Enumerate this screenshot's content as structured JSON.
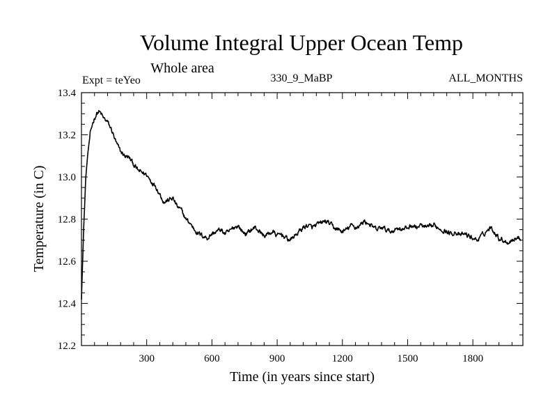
{
  "chart_data": {
    "type": "line",
    "title": "Volume Integral Upper Ocean Temp",
    "subtitle": "Whole area",
    "left_note": "Expt = teYeo",
    "center_note": "330_9_MaBP",
    "right_note": "ALL_MONTHS",
    "xlabel": "Time (in years since start)",
    "ylabel": "Temperature (in C)",
    "xlim": [
      0,
      2030
    ],
    "ylim": [
      12.2,
      13.4
    ],
    "x_ticks": [
      300,
      600,
      900,
      1200,
      1500,
      1800
    ],
    "y_ticks": [
      "12.2",
      "12.4",
      "12.6",
      "12.8",
      "13.0",
      "13.2",
      "13.4"
    ],
    "grid": false,
    "series": [
      {
        "name": "Volume Integral Upper Ocean Temp",
        "x": [
          0,
          10,
          20,
          30,
          40,
          50,
          60,
          70,
          80,
          90,
          100,
          120,
          140,
          160,
          180,
          200,
          220,
          240,
          260,
          280,
          300,
          320,
          340,
          360,
          380,
          400,
          420,
          440,
          460,
          480,
          500,
          520,
          540,
          560,
          580,
          600,
          620,
          640,
          660,
          680,
          700,
          720,
          740,
          760,
          780,
          800,
          820,
          840,
          860,
          880,
          900,
          920,
          940,
          960,
          980,
          1000,
          1020,
          1040,
          1060,
          1080,
          1100,
          1120,
          1140,
          1160,
          1180,
          1200,
          1220,
          1240,
          1260,
          1280,
          1300,
          1320,
          1340,
          1360,
          1380,
          1400,
          1420,
          1440,
          1460,
          1480,
          1500,
          1520,
          1540,
          1560,
          1580,
          1600,
          1620,
          1640,
          1660,
          1680,
          1700,
          1720,
          1740,
          1760,
          1780,
          1800,
          1820,
          1840,
          1860,
          1880,
          1900,
          1920,
          1940,
          1960,
          1980,
          2000,
          2020
        ],
        "values": [
          12.42,
          12.75,
          13.0,
          13.12,
          13.2,
          13.25,
          13.28,
          13.3,
          13.31,
          13.3,
          13.28,
          13.26,
          13.22,
          13.16,
          13.12,
          13.1,
          13.09,
          13.06,
          13.03,
          13.02,
          13.01,
          12.98,
          12.96,
          12.92,
          12.88,
          12.89,
          12.9,
          12.86,
          12.84,
          12.8,
          12.78,
          12.75,
          12.73,
          12.72,
          12.71,
          12.73,
          12.74,
          12.75,
          12.73,
          12.74,
          12.76,
          12.77,
          12.74,
          12.73,
          12.75,
          12.76,
          12.74,
          12.72,
          12.73,
          12.74,
          12.72,
          12.73,
          12.71,
          12.7,
          12.72,
          12.74,
          12.76,
          12.77,
          12.76,
          12.77,
          12.78,
          12.79,
          12.78,
          12.76,
          12.75,
          12.74,
          12.75,
          12.77,
          12.76,
          12.77,
          12.79,
          12.78,
          12.76,
          12.75,
          12.76,
          12.75,
          12.74,
          12.75,
          12.76,
          12.75,
          12.76,
          12.77,
          12.76,
          12.77,
          12.76,
          12.76,
          12.77,
          12.76,
          12.75,
          12.74,
          12.73,
          12.74,
          12.72,
          12.73,
          12.72,
          12.71,
          12.7,
          12.72,
          12.74,
          12.76,
          12.74,
          12.71,
          12.7,
          12.69,
          12.7,
          12.71,
          12.71
        ]
      }
    ]
  }
}
